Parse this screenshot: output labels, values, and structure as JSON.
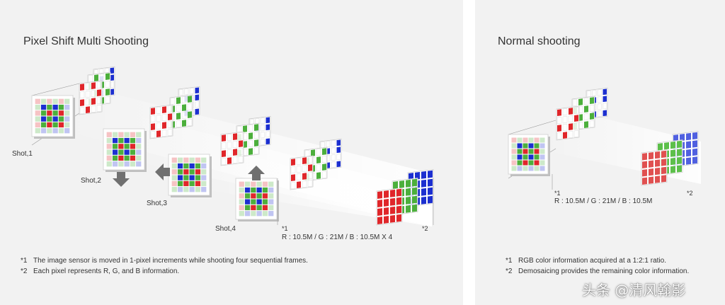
{
  "left": {
    "title": "Pixel Shift Multi Shooting",
    "shot_labels": [
      "Shot,1",
      "Shot,2",
      "Shot,3",
      "Shot,4"
    ],
    "marker1": "*1",
    "marker2": "*2",
    "ratio": "R : 10.5M / G : 21M / B : 10.5M X 4",
    "notes": [
      {
        "mark": "*1",
        "text": "The image sensor is moved in 1-pixel increments while shooting four sequential frames."
      },
      {
        "mark": "*2",
        "text": "Each pixel represents R, G, and B information."
      }
    ]
  },
  "right": {
    "title": "Normal shooting",
    "marker1": "*1",
    "marker2": "*2",
    "ratio": "R : 10.5M / G : 21M / B : 10.5M",
    "notes": [
      {
        "mark": "*1",
        "text": "RGB color information acquired at a 1:2:1 ratio."
      },
      {
        "mark": "*2",
        "text": "Demosaicing provides the remaining color information."
      }
    ]
  },
  "watermark": "头条 @清风翰影",
  "colors": {
    "red": "#e0262a",
    "green": "#4caf3c",
    "blue": "#1c2fd0",
    "panel": "#f2f2f2",
    "arrow": "#707070"
  }
}
